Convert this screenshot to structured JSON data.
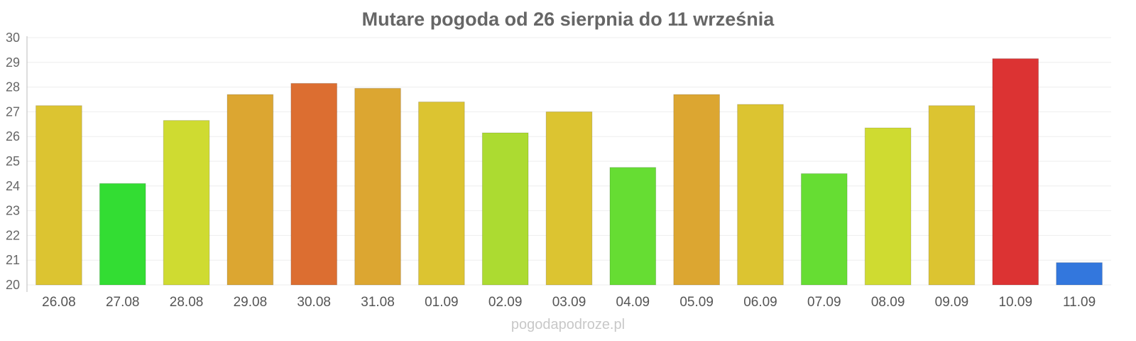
{
  "chart_data": {
    "type": "bar",
    "title": "Mutare pogoda od 26 sierpnia do 11 września",
    "xlabel": "",
    "ylabel": "",
    "ylim": [
      20,
      30
    ],
    "yticks": [
      20,
      21,
      22,
      23,
      24,
      25,
      26,
      27,
      28,
      29,
      30
    ],
    "grid": true,
    "categories": [
      "26.08",
      "27.08",
      "28.08",
      "29.08",
      "30.08",
      "31.08",
      "01.09",
      "02.09",
      "03.09",
      "04.09",
      "05.09",
      "06.09",
      "07.09",
      "08.09",
      "09.09",
      "10.09",
      "11.09"
    ],
    "values": [
      27.25,
      24.1,
      26.65,
      27.7,
      28.15,
      27.95,
      27.4,
      26.15,
      27.0,
      24.75,
      27.7,
      27.3,
      24.5,
      26.35,
      27.25,
      29.15,
      20.9
    ],
    "colors": [
      "#dcc431",
      "#33dd33",
      "#cfdb31",
      "#dca631",
      "#dc6e31",
      "#dca631",
      "#dcc431",
      "#acdb31",
      "#dcc431",
      "#66dd33",
      "#dca631",
      "#dcc431",
      "#66dd33",
      "#cfdb31",
      "#dcc431",
      "#dc3333",
      "#3377dd"
    ]
  },
  "watermark": "pogodapodroze.pl"
}
